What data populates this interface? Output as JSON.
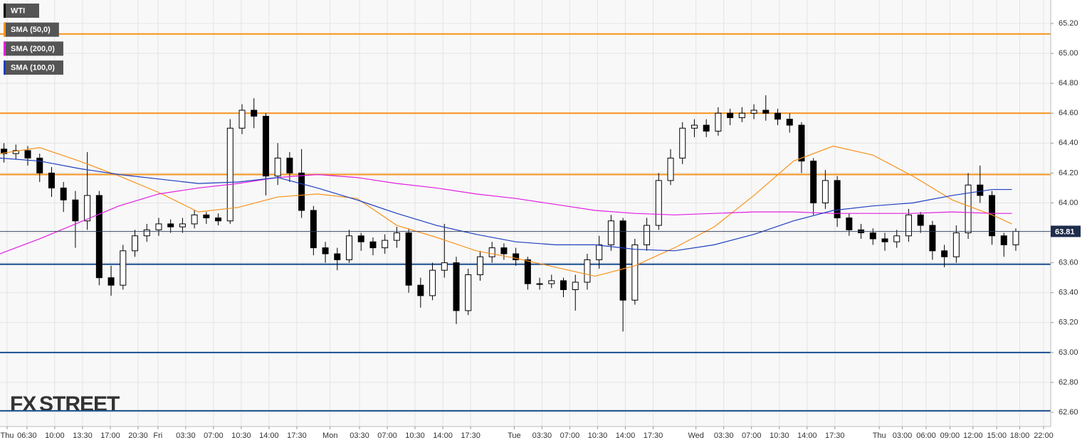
{
  "chart_data": {
    "type": "candlestick",
    "series": [
      {
        "name": "WTI",
        "type": "candlestick",
        "color": "#000000",
        "x": [
          0.5,
          2,
          3.5,
          5,
          6.5,
          8,
          9.5,
          11,
          12.5,
          14,
          15.5,
          17,
          18.5,
          20,
          21.5,
          23,
          24.5,
          26,
          27.5,
          29,
          30.5,
          32,
          33.5,
          35,
          36.5,
          38,
          39.5,
          41,
          42.5,
          44,
          45.5,
          47,
          48.5,
          50,
          51.5,
          53,
          54.5,
          56,
          57.5,
          59,
          60.5,
          62,
          63.5,
          65,
          66.5,
          68,
          69.5,
          71,
          72.5,
          74,
          75.5,
          77,
          78.5,
          80,
          81.5,
          83,
          84.5,
          86,
          87.5,
          89,
          90.5,
          92,
          93.5,
          95,
          96.5,
          98,
          99.5,
          101,
          102.5,
          104,
          105.5,
          107,
          108.5,
          110,
          111.5,
          113,
          114.5,
          116,
          117.5,
          119,
          120.5,
          122,
          123.5,
          125,
          126.5,
          128
        ],
        "open": [
          64.36,
          64.33,
          64.35,
          64.3,
          64.2,
          64.1,
          64.02,
          63.88,
          64.05,
          63.5,
          63.45,
          63.68,
          63.78,
          63.82,
          63.86,
          63.84,
          63.86,
          63.92,
          63.9,
          63.88,
          64.5,
          64.62,
          64.58,
          64.18,
          64.3,
          64.2,
          63.95,
          63.7,
          63.66,
          63.62,
          63.78,
          63.74,
          63.7,
          63.75,
          63.8,
          63.45,
          63.38,
          63.55,
          63.6,
          63.28,
          63.52,
          63.64,
          63.7,
          63.66,
          63.62,
          63.46,
          63.46,
          63.48,
          63.42,
          63.47,
          63.62,
          63.72,
          63.88,
          63.35,
          63.72,
          63.85,
          64.15,
          64.3,
          64.5,
          64.52,
          64.48,
          64.6,
          64.57,
          64.6,
          64.62,
          64.6,
          64.56,
          64.52,
          64.28,
          64.0,
          64.15,
          63.9,
          63.82,
          63.8,
          63.76,
          63.74,
          63.78,
          63.92,
          63.85,
          63.68,
          63.64,
          63.8,
          64.12,
          64.05,
          63.78,
          63.72
        ],
        "high": [
          64.4,
          64.39,
          64.38,
          64.33,
          64.24,
          64.14,
          64.08,
          64.34,
          64.08,
          63.58,
          63.72,
          63.82,
          63.86,
          63.9,
          63.89,
          63.9,
          63.95,
          63.94,
          63.93,
          64.56,
          64.66,
          64.7,
          64.6,
          64.4,
          64.34,
          64.36,
          63.98,
          63.74,
          63.7,
          63.82,
          63.8,
          63.77,
          63.79,
          63.84,
          63.83,
          63.5,
          63.6,
          63.86,
          63.64,
          63.56,
          63.68,
          63.74,
          63.73,
          63.7,
          63.64,
          63.5,
          63.52,
          63.5,
          63.52,
          63.66,
          63.78,
          63.92,
          63.9,
          63.76,
          63.9,
          64.2,
          64.36,
          64.54,
          64.56,
          64.56,
          64.64,
          64.63,
          64.64,
          64.66,
          64.72,
          64.63,
          64.6,
          64.54,
          64.3,
          64.22,
          64.18,
          63.93,
          63.86,
          63.83,
          63.8,
          63.82,
          63.96,
          63.94,
          63.88,
          63.72,
          63.85,
          64.2,
          64.25,
          64.08,
          63.8,
          63.83
        ],
        "low": [
          64.27,
          64.29,
          64.25,
          64.14,
          64.04,
          63.94,
          63.7,
          63.82,
          63.45,
          63.38,
          63.42,
          63.64,
          63.74,
          63.78,
          63.8,
          63.8,
          63.83,
          63.86,
          63.85,
          63.86,
          64.46,
          64.5,
          64.05,
          64.12,
          64.14,
          63.9,
          63.65,
          63.6,
          63.55,
          63.6,
          63.68,
          63.65,
          63.66,
          63.7,
          63.4,
          63.3,
          63.35,
          63.5,
          63.19,
          63.25,
          63.48,
          63.6,
          63.62,
          63.58,
          63.42,
          63.42,
          63.43,
          63.37,
          63.28,
          63.42,
          63.56,
          63.68,
          63.14,
          63.32,
          63.68,
          63.82,
          64.12,
          64.26,
          64.44,
          64.44,
          64.45,
          64.52,
          64.54,
          64.56,
          64.55,
          64.52,
          64.47,
          64.2,
          63.92,
          63.96,
          63.84,
          63.78,
          63.76,
          63.72,
          63.68,
          63.7,
          63.74,
          63.8,
          63.62,
          63.57,
          63.6,
          63.76,
          64.0,
          63.72,
          63.64,
          63.68
        ],
        "close": [
          64.33,
          64.35,
          64.3,
          64.2,
          64.1,
          64.02,
          63.88,
          64.05,
          63.5,
          63.45,
          63.68,
          63.78,
          63.82,
          63.86,
          63.84,
          63.86,
          63.92,
          63.9,
          63.88,
          64.5,
          64.62,
          64.58,
          64.18,
          64.3,
          64.2,
          63.95,
          63.7,
          63.66,
          63.62,
          63.78,
          63.74,
          63.7,
          63.75,
          63.8,
          63.45,
          63.38,
          63.55,
          63.6,
          63.28,
          63.52,
          63.64,
          63.7,
          63.66,
          63.62,
          63.46,
          63.46,
          63.48,
          63.42,
          63.47,
          63.62,
          63.72,
          63.88,
          63.35,
          63.72,
          63.85,
          64.15,
          64.3,
          64.5,
          64.52,
          64.48,
          64.6,
          64.57,
          64.6,
          64.62,
          64.6,
          64.56,
          64.52,
          64.28,
          64.0,
          64.15,
          63.9,
          63.82,
          63.8,
          63.76,
          63.74,
          63.78,
          63.92,
          63.85,
          63.68,
          63.64,
          63.8,
          64.12,
          64.05,
          63.78,
          63.72,
          63.81
        ]
      },
      {
        "name": "SMA (50,0)",
        "type": "line",
        "color": "#f7931e",
        "x": [
          0,
          5,
          10,
          15,
          20,
          25,
          30,
          35,
          40,
          45,
          50,
          55,
          60,
          65,
          70,
          75,
          80,
          85,
          90,
          95,
          100,
          105,
          110,
          115,
          120,
          125,
          127.5
        ],
        "values": [
          64.33,
          64.37,
          64.28,
          64.18,
          64.07,
          63.94,
          63.97,
          64.04,
          64.06,
          64.03,
          63.85,
          63.77,
          63.68,
          63.63,
          63.57,
          63.51,
          63.58,
          63.7,
          63.84,
          64.05,
          64.28,
          64.38,
          64.32,
          64.18,
          64.02,
          63.92,
          63.86
        ]
      },
      {
        "name": "SMA (200,0)",
        "type": "line",
        "color": "#e020e0",
        "x": [
          0,
          5,
          10,
          15,
          20,
          25,
          30,
          35,
          40,
          45,
          50,
          55,
          60,
          65,
          70,
          75,
          80,
          85,
          90,
          95,
          100,
          105,
          110,
          115,
          120,
          125,
          127.5
        ],
        "values": [
          63.66,
          63.76,
          63.87,
          63.98,
          64.06,
          64.1,
          64.13,
          64.17,
          64.19,
          64.17,
          64.13,
          64.1,
          64.06,
          64.03,
          63.99,
          63.95,
          63.93,
          63.92,
          63.93,
          63.94,
          63.94,
          63.93,
          63.93,
          63.93,
          63.94,
          63.93,
          63.93
        ]
      },
      {
        "name": "SMA (100,0)",
        "type": "line",
        "color": "#1f3fbf",
        "x": [
          0,
          5,
          10,
          15,
          20,
          25,
          30,
          35,
          40,
          45,
          50,
          55,
          60,
          65,
          70,
          75,
          80,
          85,
          90,
          95,
          100,
          105,
          110,
          115,
          120,
          125,
          127.5
        ],
        "values": [
          64.3,
          64.28,
          64.23,
          64.19,
          64.16,
          64.13,
          64.14,
          64.17,
          64.1,
          64.02,
          63.93,
          63.85,
          63.79,
          63.74,
          63.72,
          63.72,
          63.69,
          63.68,
          63.72,
          63.79,
          63.88,
          63.95,
          63.98,
          64.0,
          64.05,
          64.09,
          64.09
        ]
      }
    ],
    "levels": [
      {
        "value": 65.13,
        "color": "#f7931e"
      },
      {
        "value": 64.6,
        "color": "#f7931e"
      },
      {
        "value": 64.19,
        "color": "#f7931e"
      },
      {
        "value": 63.59,
        "color": "#1a4f8f"
      },
      {
        "value": 63.0,
        "color": "#1a4f8f"
      },
      {
        "value": 62.61,
        "color": "#1a4f8f"
      }
    ],
    "last_price": 63.81,
    "ylim": [
      62.505,
      65.357
    ],
    "yticks": [
      {
        "value": 62.6,
        "label": "62.60"
      },
      {
        "value": 62.8,
        "label": "62.80"
      },
      {
        "value": 63.0,
        "label": "63.00"
      },
      {
        "value": 63.2,
        "label": "63.20"
      },
      {
        "value": 63.4,
        "label": "63.40"
      },
      {
        "value": 63.6,
        "label": "63.60"
      },
      {
        "value": 63.8,
        "label": "63.80"
      },
      {
        "value": 64.0,
        "label": "64.00"
      },
      {
        "value": 64.2,
        "label": "64.20"
      },
      {
        "value": 64.4,
        "label": "64.40"
      },
      {
        "value": 64.6,
        "label": "64.60"
      },
      {
        "value": 64.8,
        "label": "64.80"
      },
      {
        "value": 65.0,
        "label": "65.00"
      },
      {
        "value": 65.2,
        "label": "65.20"
      }
    ],
    "xlim": [
      0,
      132.4
    ],
    "xticks": [
      {
        "value": 0.9,
        "label": "Thu"
      },
      {
        "value": 3.4,
        "label": "06:30"
      },
      {
        "value": 6.9,
        "label": "10:00"
      },
      {
        "value": 10.4,
        "label": "13:30"
      },
      {
        "value": 13.9,
        "label": "17:00"
      },
      {
        "value": 17.4,
        "label": "20:30"
      },
      {
        "value": 19.9,
        "label": "Fri"
      },
      {
        "value": 23.4,
        "label": "03:30"
      },
      {
        "value": 26.9,
        "label": "07:00"
      },
      {
        "value": 30.4,
        "label": "10:30"
      },
      {
        "value": 33.9,
        "label": "14:00"
      },
      {
        "value": 37.4,
        "label": "17:30"
      },
      {
        "value": 41.6,
        "label": "Mon"
      },
      {
        "value": 45.3,
        "label": "03:30"
      },
      {
        "value": 48.8,
        "label": "07:00"
      },
      {
        "value": 52.3,
        "label": "10:30"
      },
      {
        "value": 55.8,
        "label": "14:00"
      },
      {
        "value": 59.3,
        "label": "17:30"
      },
      {
        "value": 64.8,
        "label": "Tue"
      },
      {
        "value": 68.3,
        "label": "03:30"
      },
      {
        "value": 71.8,
        "label": "07:00"
      },
      {
        "value": 75.3,
        "label": "10:30"
      },
      {
        "value": 78.8,
        "label": "14:00"
      },
      {
        "value": 82.3,
        "label": "17:30"
      },
      {
        "value": 87.7,
        "label": "Wed"
      },
      {
        "value": 91.2,
        "label": "03:30"
      },
      {
        "value": 94.7,
        "label": "07:00"
      },
      {
        "value": 98.2,
        "label": "10:30"
      },
      {
        "value": 101.7,
        "label": "14:00"
      },
      {
        "value": 105.2,
        "label": "17:30"
      },
      {
        "value": 110.8,
        "label": "Thu"
      },
      {
        "value": 113.7,
        "label": "03:00"
      },
      {
        "value": 116.7,
        "label": "06:00"
      },
      {
        "value": 119.7,
        "label": "09:00"
      },
      {
        "value": 122.6,
        "label": "12:00"
      },
      {
        "value": 125.6,
        "label": "15:00"
      },
      {
        "value": 128.5,
        "label": "18:00"
      },
      {
        "value": 131.5,
        "label": "22:00"
      }
    ],
    "grid": true,
    "watermark": [
      "FX",
      "STREET"
    ]
  }
}
